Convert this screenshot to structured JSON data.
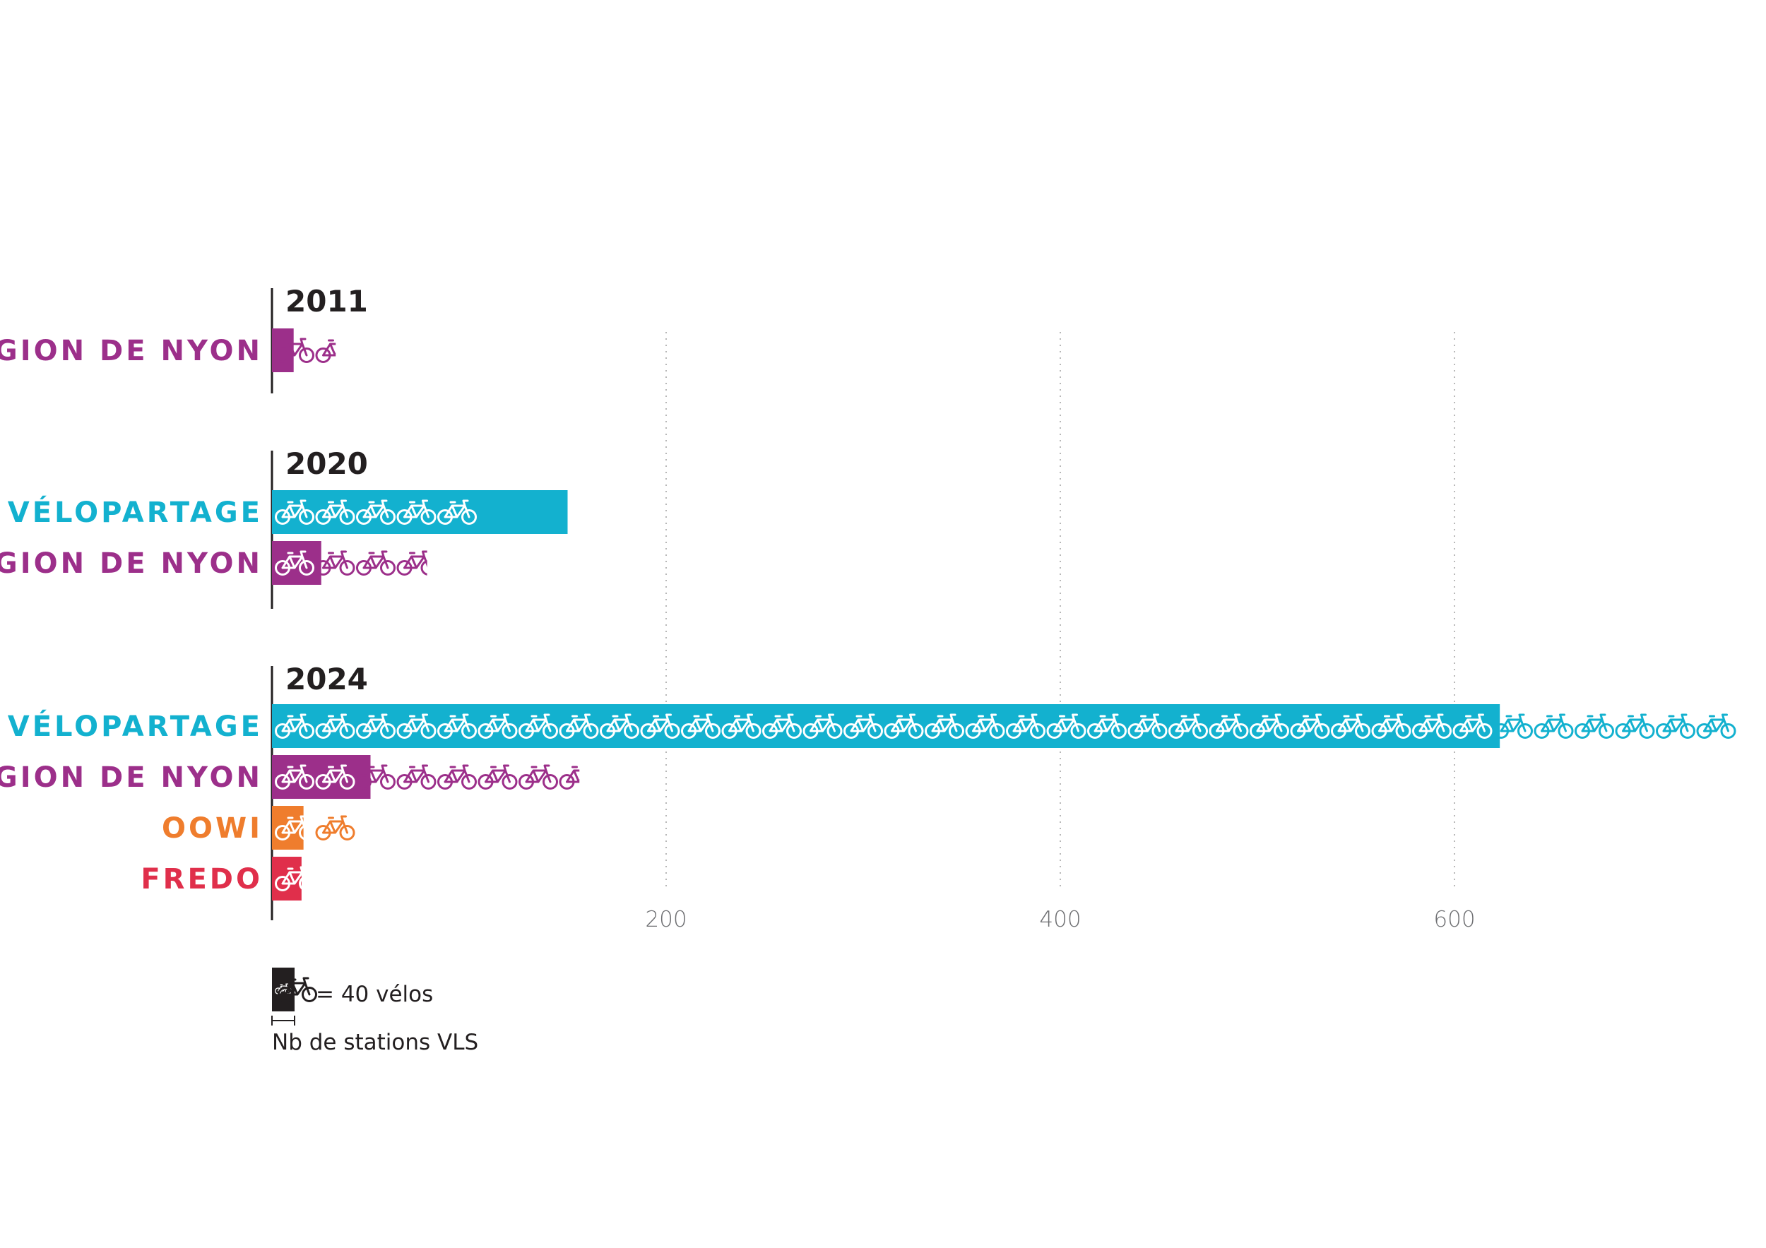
{
  "chart_data": {
    "type": "bar",
    "title": "",
    "xlabel": "",
    "ylabel": "",
    "xlim": [
      0,
      1440
    ],
    "x_ticks": [
      200,
      400,
      600,
      800,
      1000,
      1200,
      1400
    ],
    "grid": true,
    "groups": [
      {
        "year": "2011",
        "series": [
          {
            "name": "RÉGION DE NYON",
            "color": "#9c2f8a",
            "stations": 11,
            "bikes": 60
          }
        ]
      },
      {
        "year": "2020",
        "series": [
          {
            "name": "VÉLOPARTAGE",
            "color": "#13b1cf",
            "stations": 150,
            "bikes": 200
          },
          {
            "name": "RÉGION DE NYON",
            "color": "#9c2f8a",
            "stations": 25,
            "bikes": 150
          }
        ]
      },
      {
        "year": "2024",
        "series": [
          {
            "name": "VÉLOPARTAGE",
            "color": "#13b1cf",
            "stations": 623,
            "bikes": 1440
          },
          {
            "name": "RÉGION DE NYON",
            "color": "#9c2f8a",
            "stations": 50,
            "bikes": 300
          },
          {
            "name": "OOWI",
            "color": "#ef7d2d",
            "stations": 16,
            "bikes": 80
          },
          {
            "name": "FREDO",
            "color": "#e02f4b",
            "stations": 15,
            "bikes": 35
          }
        ]
      }
    ],
    "legend": {
      "icon_label": "= 40 vélos",
      "bar_label": "Nb de stations VLS",
      "bikes_per_icon": 40,
      "icon_color": "#231f20"
    }
  }
}
